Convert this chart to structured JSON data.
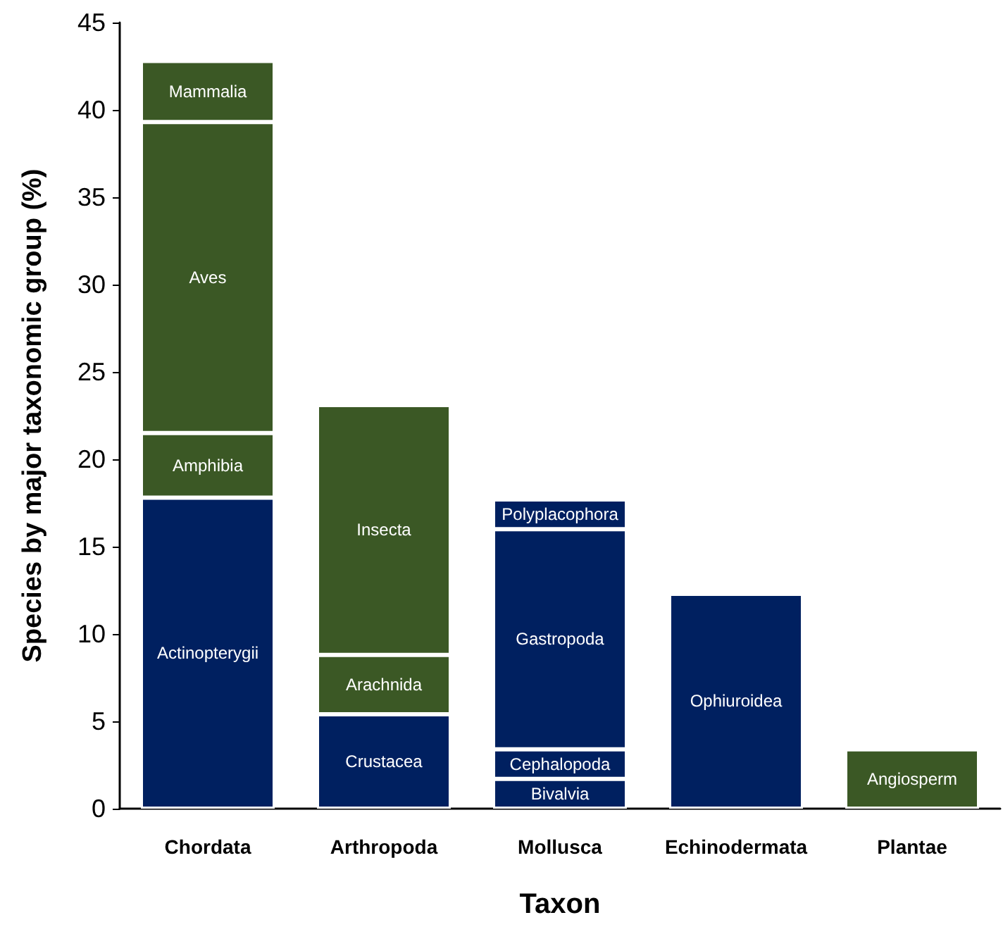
{
  "chart_data": {
    "type": "bar",
    "stacked": true,
    "xlabel": "Taxon",
    "ylabel": "Species by major taxonomic group (%)",
    "categories": [
      "Chordata",
      "Arthropoda",
      "Mollusca",
      "Echinodermata",
      "Plantae"
    ],
    "ylim": [
      0,
      45
    ],
    "yticks": [
      0,
      5,
      10,
      15,
      20,
      25,
      30,
      35,
      40,
      45
    ],
    "grid": false,
    "legend": false,
    "series": [
      {
        "name": "Actinopterygii",
        "color": "#002060",
        "values": [
          17.8,
          null,
          null,
          null,
          null
        ]
      },
      {
        "name": "Amphibia",
        "color": "#3b5825",
        "values": [
          3.7,
          null,
          null,
          null,
          null
        ]
      },
      {
        "name": "Aves",
        "color": "#3b5825",
        "values": [
          17.8,
          null,
          null,
          null,
          null
        ]
      },
      {
        "name": "Mammalia",
        "color": "#3b5825",
        "values": [
          3.5,
          null,
          null,
          null,
          null
        ]
      },
      {
        "name": "Crustacea",
        "color": "#002060",
        "values": [
          null,
          5.4,
          null,
          null,
          null
        ]
      },
      {
        "name": "Arachnida",
        "color": "#3b5825",
        "values": [
          null,
          3.4,
          null,
          null,
          null
        ]
      },
      {
        "name": "Insecta",
        "color": "#3b5825",
        "values": [
          null,
          14.3,
          null,
          null,
          null
        ]
      },
      {
        "name": "Bivalvia",
        "color": "#002060",
        "values": [
          null,
          null,
          1.7,
          null,
          null
        ]
      },
      {
        "name": "Cephalopoda",
        "color": "#002060",
        "values": [
          null,
          null,
          1.7,
          null,
          null
        ]
      },
      {
        "name": "Gastropoda",
        "color": "#002060",
        "values": [
          null,
          null,
          12.6,
          null,
          null
        ]
      },
      {
        "name": "Polyplacophora",
        "color": "#002060",
        "values": [
          null,
          null,
          1.7,
          null,
          null
        ]
      },
      {
        "name": "Ophiuroidea",
        "color": "#002060",
        "values": [
          null,
          null,
          null,
          12.3,
          null
        ]
      },
      {
        "name": "Angiosperm",
        "color": "#3b5825",
        "values": [
          null,
          null,
          null,
          null,
          3.4
        ]
      }
    ]
  }
}
